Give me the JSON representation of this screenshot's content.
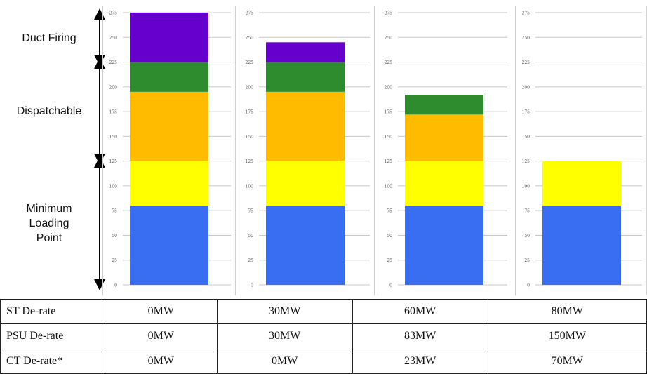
{
  "labels": {
    "duct_firing": "Duct Firing",
    "dispatchable": "Dispatchable",
    "minimum_loading_point": [
      "Minimum",
      "Loading",
      "Point"
    ]
  },
  "colors": {
    "blue": "#3a6ef2",
    "yellow": "#ffff00",
    "orange": "#ffbb00",
    "green": "#2e8b2e",
    "purple": "#6600cc",
    "grid": "#c8c8c8",
    "arrow": "#000000"
  },
  "chart_data": [
    {
      "type": "bar",
      "stacked": true,
      "ylim": [
        0,
        275
      ],
      "yticks": [
        0,
        25,
        50,
        75,
        100,
        125,
        150,
        175,
        200,
        225,
        250,
        275
      ],
      "segments": [
        {
          "color": "blue",
          "from": 0,
          "to": 80
        },
        {
          "color": "yellow",
          "from": 80,
          "to": 125
        },
        {
          "color": "orange",
          "from": 125,
          "to": 195
        },
        {
          "color": "green",
          "from": 195,
          "to": 225
        },
        {
          "color": "purple",
          "from": 225,
          "to": 275
        }
      ]
    },
    {
      "type": "bar",
      "stacked": true,
      "ylim": [
        0,
        275
      ],
      "yticks": [
        0,
        25,
        50,
        75,
        100,
        125,
        150,
        175,
        200,
        225,
        250,
        275
      ],
      "segments": [
        {
          "color": "blue",
          "from": 0,
          "to": 80
        },
        {
          "color": "yellow",
          "from": 80,
          "to": 125
        },
        {
          "color": "orange",
          "from": 125,
          "to": 195
        },
        {
          "color": "green",
          "from": 195,
          "to": 225
        },
        {
          "color": "purple",
          "from": 225,
          "to": 245
        }
      ]
    },
    {
      "type": "bar",
      "stacked": true,
      "ylim": [
        0,
        275
      ],
      "yticks": [
        0,
        25,
        50,
        75,
        100,
        125,
        150,
        175,
        200,
        225,
        250,
        275
      ],
      "segments": [
        {
          "color": "blue",
          "from": 0,
          "to": 80
        },
        {
          "color": "yellow",
          "from": 80,
          "to": 125
        },
        {
          "color": "orange",
          "from": 125,
          "to": 172
        },
        {
          "color": "green",
          "from": 172,
          "to": 192
        }
      ]
    },
    {
      "type": "bar",
      "stacked": true,
      "ylim": [
        0,
        275
      ],
      "yticks": [
        0,
        25,
        50,
        75,
        100,
        125,
        150,
        175,
        200,
        225,
        250,
        275
      ],
      "segments": [
        {
          "color": "blue",
          "from": 0,
          "to": 80
        },
        {
          "color": "yellow",
          "from": 80,
          "to": 125
        }
      ]
    }
  ],
  "table": {
    "rows": [
      {
        "label": "ST De-rate",
        "values": [
          "0MW",
          "30MW",
          "60MW",
          "80MW"
        ]
      },
      {
        "label": "PSU De-rate",
        "values": [
          "0MW",
          "30MW",
          "83MW",
          "150MW"
        ]
      },
      {
        "label": "CT De-rate*",
        "values": [
          "0MW",
          "0MW",
          "23MW",
          "70MW"
        ]
      }
    ]
  }
}
